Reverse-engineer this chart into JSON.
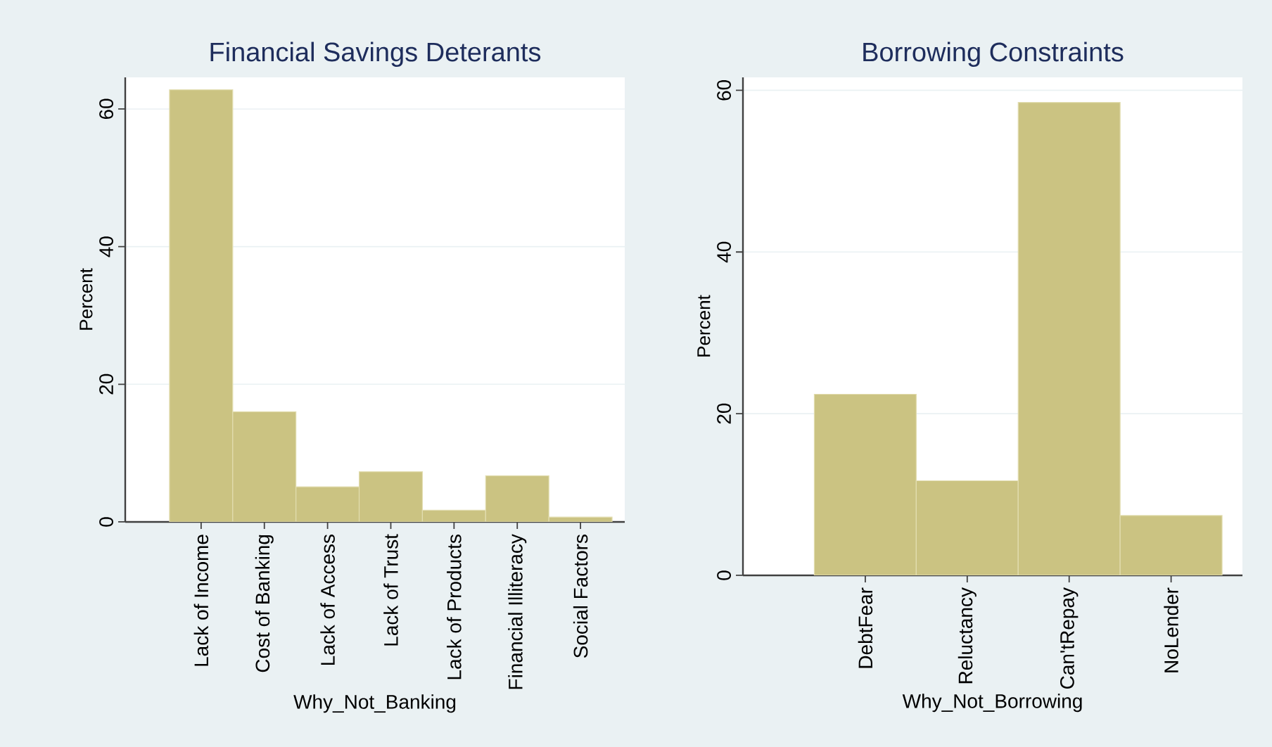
{
  "chart_data": [
    {
      "type": "bar",
      "title": "Financial Savings Deterants",
      "xlabel": "Why_Not_Banking",
      "ylabel": "Percent",
      "categories": [
        "Lack of Income",
        "Cost of Banking",
        "Lack of Access",
        "Lack of Trust",
        "Lack of Products",
        "Financial Illiteracy",
        "Social Factors"
      ],
      "values": [
        62.8,
        16.0,
        5.1,
        7.3,
        1.7,
        6.7,
        0.7
      ],
      "color": "#cbc382",
      "ylim": [
        0,
        64.6
      ],
      "yticks": [
        0,
        20,
        40,
        60
      ],
      "grid": "y"
    },
    {
      "type": "bar",
      "title": "Borrowing Constraints",
      "xlabel": "Why_Not_Borrowing",
      "ylabel": "Percent",
      "categories": [
        "DebtFear",
        "Reluctancy",
        "Can'tRepay",
        "NoLender"
      ],
      "values": [
        22.4,
        11.7,
        58.5,
        7.4
      ],
      "color": "#cbc382",
      "ylim": [
        0,
        61.6
      ],
      "yticks": [
        0,
        20,
        40,
        60
      ],
      "grid": "y"
    }
  ]
}
